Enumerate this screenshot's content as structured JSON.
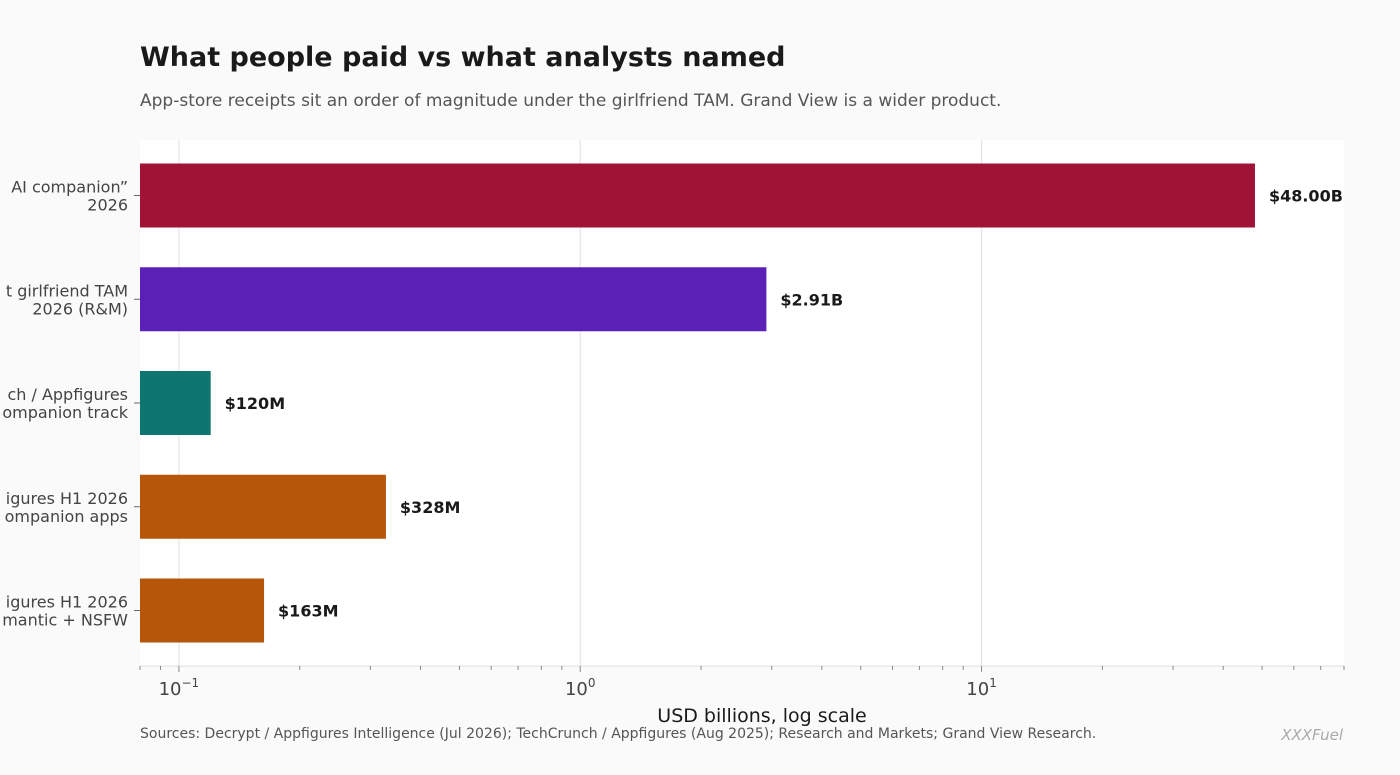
{
  "header": {
    "title": "What people paid vs what analysts named",
    "subtitle": "App-store receipts sit an order of magnitude under the girlfriend TAM. Grand View is a wider product."
  },
  "footer": {
    "sources": "Sources: Decrypt / Appfigures Intelligence (Jul 2026); TechCrunch / Appfigures (Aug 2025); Research and Markets; Grand View Research.",
    "watermark": "XXXFuel"
  },
  "chart_data": {
    "type": "bar",
    "orientation": "horizontal",
    "title": "What people paid vs what analysts named",
    "subtitle": "App-store receipts sit an order of magnitude under the girlfriend TAM. Grand View is a wider product.",
    "xlabel": "USD billions, log scale",
    "x_scale": "log",
    "xlim": [
      0.08,
      80
    ],
    "x_major_ticks": [
      {
        "value": 0.1,
        "base": "10",
        "exp": "−1"
      },
      {
        "value": 1,
        "base": "10",
        "exp": "0"
      },
      {
        "value": 10,
        "base": "10",
        "exp": "1"
      }
    ],
    "grid": "x-major",
    "categories": [
      "AI companion” 2026",
      "girlfriend TAM 2026 (R&M)",
      "ch / Appfigures ompanion track",
      "igures H1 2026 ompanion apps",
      "igures H1 2026 mantic + NSFW"
    ],
    "category_lines": [
      [
        "AI companion”",
        "2026"
      ],
      [
        "t girlfriend TAM",
        "2026 (R&M)"
      ],
      [
        "ch / Appfigures",
        "ompanion track"
      ],
      [
        "igures H1 2026",
        "ompanion apps"
      ],
      [
        "igures H1 2026",
        "mantic + NSFW"
      ]
    ],
    "values": [
      48.0,
      2.91,
      0.12,
      0.328,
      0.163
    ],
    "value_labels": [
      "$48.00B",
      "$2.91B",
      "$120M",
      "$328M",
      "$163M"
    ],
    "colors": [
      "#a11237",
      "#5b21b6",
      "#0e7570",
      "#b5560b",
      "#b5560b"
    ]
  }
}
